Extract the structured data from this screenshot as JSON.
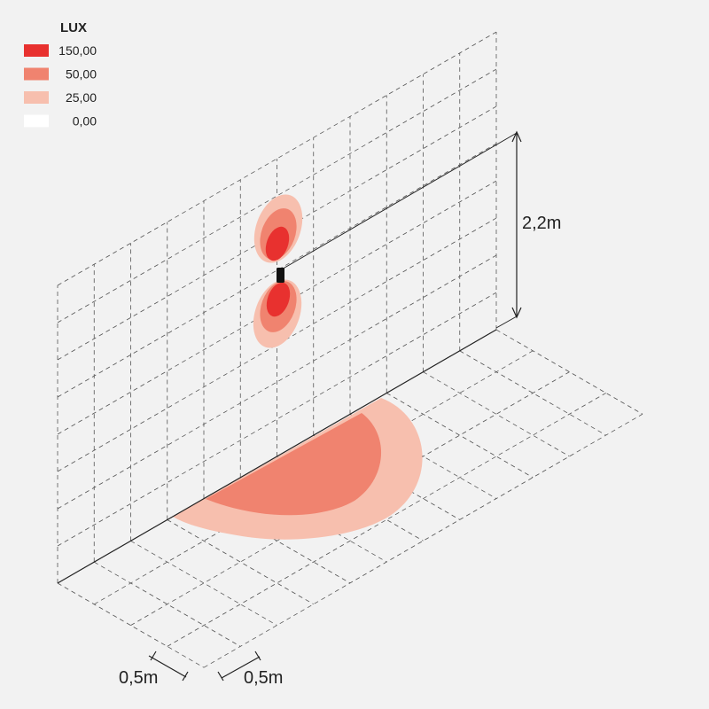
{
  "legend": {
    "title": "LUX",
    "items": [
      {
        "label": "150,00",
        "color": "#e8312f"
      },
      {
        "label": "50,00",
        "color": "#f0836f"
      },
      {
        "label": "25,00",
        "color": "#f7bfae"
      },
      {
        "label": "0,00",
        "color": "#ffffff"
      }
    ]
  },
  "dimensions": {
    "height": "2,2m",
    "depth": "0,5m",
    "width": "0,5m"
  }
}
